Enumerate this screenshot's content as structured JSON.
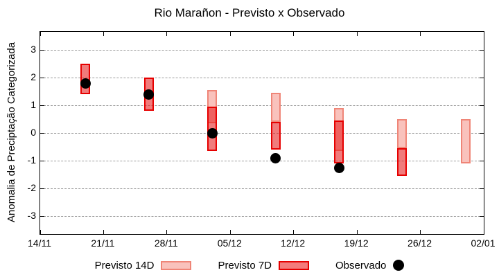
{
  "chart_data": {
    "type": "candlestick",
    "title": "Rio Marañon - Previsto x Observado",
    "ylabel": "Anomalia de Preciptação Categorizada",
    "ylim": [
      -3.65,
      3.65
    ],
    "yticks": [
      3,
      2,
      1,
      0,
      -1,
      -2,
      -3
    ],
    "x_range_days": 49,
    "xticks": [
      {
        "day": 0,
        "label": "14/11"
      },
      {
        "day": 7,
        "label": "21/11"
      },
      {
        "day": 14,
        "label": "28/11"
      },
      {
        "day": 21,
        "label": "05/12"
      },
      {
        "day": 28,
        "label": "12/12"
      },
      {
        "day": 35,
        "label": "19/12"
      },
      {
        "day": 42,
        "label": "26/12"
      },
      {
        "day": 49,
        "label": "02/01"
      }
    ],
    "grid": {
      "horizontal": true,
      "style": "dashed",
      "legend_position": "bottom"
    },
    "legend": [
      {
        "label": "Previsto 14D",
        "swatch": "box-light-pink"
      },
      {
        "label": "Previsto 7D",
        "swatch": "box-red"
      },
      {
        "label": "Observado",
        "swatch": "black-dot"
      }
    ],
    "points": [
      {
        "date": "19/11",
        "day": 5,
        "previsto_7d": [
          1.45,
          2.45
        ],
        "observado": 1.8
      },
      {
        "date": "26/11",
        "day": 12,
        "previsto_7d": [
          0.85,
          1.95
        ],
        "observado": 1.4
      },
      {
        "date": "03/12",
        "day": 19,
        "previsto_14d": [
          0.4,
          1.5
        ],
        "previsto_7d": [
          -0.6,
          0.9
        ],
        "observado": 0.0
      },
      {
        "date": "10/12",
        "day": 26,
        "previsto_14d": [
          0.45,
          1.4
        ],
        "previsto_7d": [
          -0.55,
          0.35
        ],
        "observado": -0.9
      },
      {
        "date": "17/12",
        "day": 33,
        "previsto_14d": [
          -0.6,
          0.85
        ],
        "previsto_7d": [
          -1.05,
          0.4
        ],
        "observado": -1.25
      },
      {
        "date": "24/12",
        "day": 40,
        "previsto_14d": [
          -0.5,
          0.45
        ],
        "previsto_7d": [
          -1.5,
          -0.6
        ]
      },
      {
        "date": "31/12",
        "day": 47,
        "previsto_14d": [
          -1.05,
          0.45
        ]
      }
    ],
    "colors": {
      "p14_fill": "#f9c2bc",
      "p14_border": "#ef8577",
      "p7_fill": "rgba(230,30,30,0.58)",
      "p7_border": "#e60000",
      "p7_legend_fill": "#f37c7c",
      "obs": "#000000",
      "grid": "#999999",
      "axis": "#000000"
    }
  }
}
